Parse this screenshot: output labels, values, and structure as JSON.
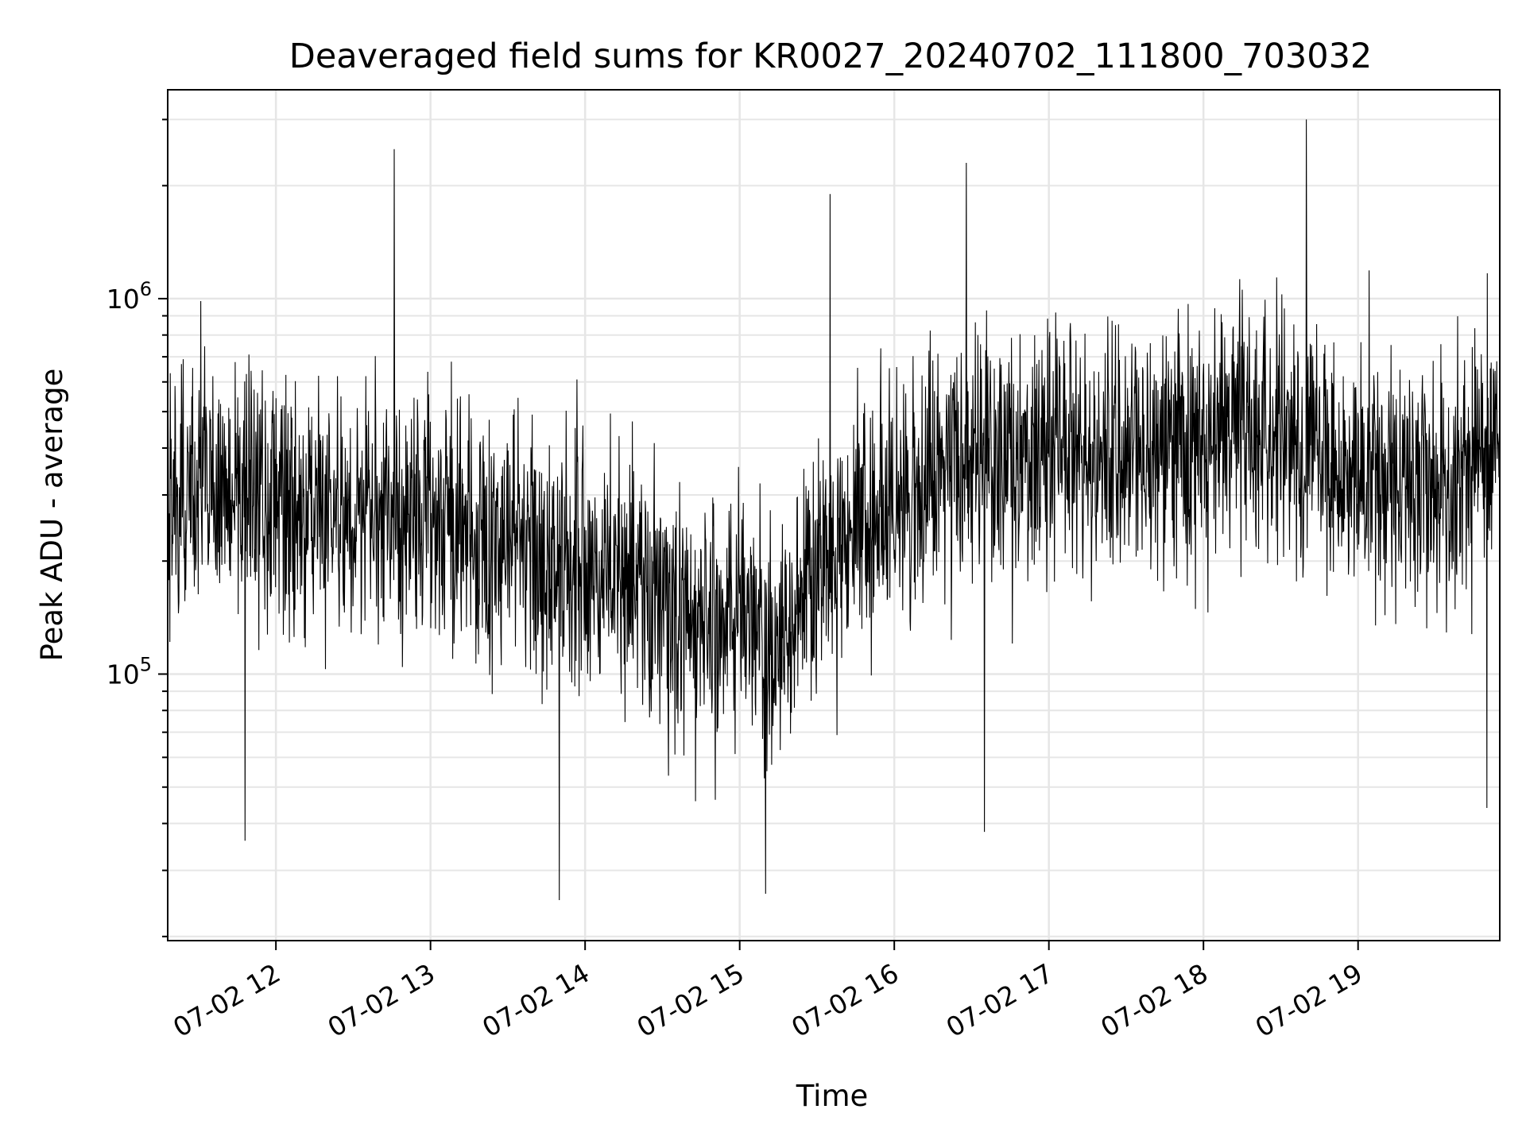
{
  "chart_data": {
    "type": "line",
    "title": "Deaveraged field sums for KR0027_20240702_111800_703032",
    "xlabel": "Time",
    "ylabel": "Peak ADU - average",
    "x_axis": {
      "type": "datetime",
      "start": "2024-07-02T11:18:00",
      "end": "2024-07-02T19:55:00",
      "ticks": [
        {
          "time": "2024-07-02T12:00",
          "label": "07-02 12"
        },
        {
          "time": "2024-07-02T13:00",
          "label": "07-02 13"
        },
        {
          "time": "2024-07-02T14:00",
          "label": "07-02 14"
        },
        {
          "time": "2024-07-02T15:00",
          "label": "07-02 15"
        },
        {
          "time": "2024-07-02T16:00",
          "label": "07-02 16"
        },
        {
          "time": "2024-07-02T17:00",
          "label": "07-02 17"
        },
        {
          "time": "2024-07-02T18:00",
          "label": "07-02 18"
        },
        {
          "time": "2024-07-02T19:00",
          "label": "07-02 19"
        }
      ]
    },
    "y_axis": {
      "scale": "log",
      "ylim": [
        19500,
        3600000
      ],
      "major_ticks": [
        {
          "value": 100000,
          "base": "10",
          "exp": "5"
        },
        {
          "value": 1000000,
          "base": "10",
          "exp": "6"
        }
      ]
    },
    "grid": true,
    "legend": "none",
    "series": [
      {
        "color": "#000000",
        "envelope": [
          {
            "time": "2024-07-02T11:18",
            "median": 330000
          },
          {
            "time": "2024-07-02T12:00",
            "median": 300000
          },
          {
            "time": "2024-07-02T12:30",
            "median": 260000
          },
          {
            "time": "2024-07-02T13:00",
            "median": 280000
          },
          {
            "time": "2024-07-02T13:30",
            "median": 230000
          },
          {
            "time": "2024-07-02T14:00",
            "median": 200000
          },
          {
            "time": "2024-07-02T14:30",
            "median": 150000
          },
          {
            "time": "2024-07-02T15:00",
            "median": 140000
          },
          {
            "time": "2024-07-02T15:15",
            "median": 110000
          },
          {
            "time": "2024-07-02T15:30",
            "median": 200000
          },
          {
            "time": "2024-07-02T16:00",
            "median": 290000
          },
          {
            "time": "2024-07-02T16:30",
            "median": 350000
          },
          {
            "time": "2024-07-02T17:00",
            "median": 390000
          },
          {
            "time": "2024-07-02T17:30",
            "median": 380000
          },
          {
            "time": "2024-07-02T18:00",
            "median": 420000
          },
          {
            "time": "2024-07-02T18:30",
            "median": 470000
          },
          {
            "time": "2024-07-02T19:00",
            "median": 330000
          },
          {
            "time": "2024-07-02T19:30",
            "median": 300000
          },
          {
            "time": "2024-07-02T19:55",
            "median": 450000
          }
        ],
        "extremes": [
          {
            "time": "2024-07-02T11:48",
            "value": 36000
          },
          {
            "time": "2024-07-02T12:46",
            "value": 2500000
          },
          {
            "time": "2024-07-02T13:50",
            "value": 25000
          },
          {
            "time": "2024-07-02T15:10",
            "value": 26000
          },
          {
            "time": "2024-07-02T15:35",
            "value": 1900000
          },
          {
            "time": "2024-07-02T16:28",
            "value": 2300000
          },
          {
            "time": "2024-07-02T16:35",
            "value": 38000
          },
          {
            "time": "2024-07-02T18:40",
            "value": 3000000
          },
          {
            "time": "2024-07-02T19:50",
            "value": 44000
          }
        ]
      }
    ]
  }
}
